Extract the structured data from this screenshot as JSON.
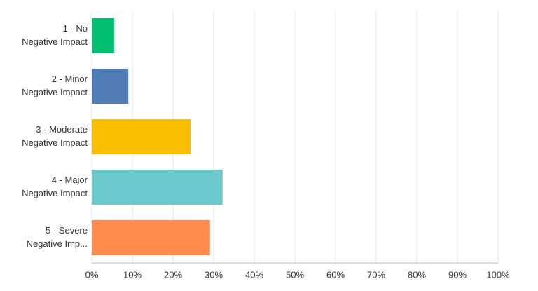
{
  "chart_data": {
    "type": "hbar",
    "categories": [
      [
        "1 - No",
        "Negative Impact"
      ],
      [
        "2 - Minor",
        "Negative Impact"
      ],
      [
        "3 - Moderate",
        "Negative Impact"
      ],
      [
        "4 - Major",
        "Negative Impact"
      ],
      [
        "5 - Severe",
        "Negative Imp..."
      ]
    ],
    "values": [
      5.5,
      9,
      24.3,
      32.2,
      29.1
    ],
    "colors": [
      "#00bf6f",
      "#507cb6",
      "#f9be00",
      "#6bc8cd",
      "#ff8b4f"
    ],
    "xlim": [
      0,
      100
    ],
    "xticks": [
      {
        "value": 0,
        "label": "0%"
      },
      {
        "value": 10,
        "label": "10%"
      },
      {
        "value": 20,
        "label": "20%"
      },
      {
        "value": 30,
        "label": "30%"
      },
      {
        "value": 40,
        "label": "40%"
      },
      {
        "value": 50,
        "label": "50%"
      },
      {
        "value": 60,
        "label": "60%"
      },
      {
        "value": 70,
        "label": "70%"
      },
      {
        "value": 80,
        "label": "80%"
      },
      {
        "value": 90,
        "label": "90%"
      },
      {
        "value": 100,
        "label": "100%"
      }
    ],
    "grid": true
  }
}
